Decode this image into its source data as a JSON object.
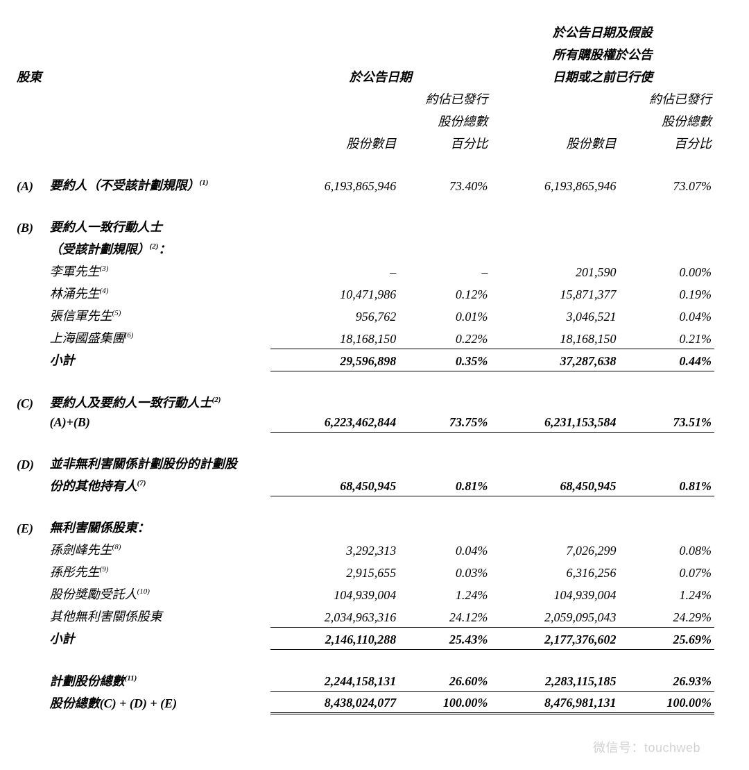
{
  "headers": {
    "shareholder": "股東",
    "group1": "於公告日期",
    "group2_line1": "於公告日期及假設",
    "group2_line2": "所有購股權於公告",
    "group2_line3": "日期或之前已行使",
    "shares": "股份數目",
    "pct_line1": "約佔已發行",
    "pct_line2": "股份總數",
    "pct_line3": "百分比"
  },
  "A": {
    "tag": "(A)",
    "label": "要約人（不受該計劃規限）",
    "sup": "(1)",
    "shares1": "6,193,865,946",
    "pct1": "73.40%",
    "shares2": "6,193,865,946",
    "pct2": "73.07%"
  },
  "B": {
    "tag": "(B)",
    "title_line1": "要約人一致行動人士",
    "title_line2": "（受該計劃規限）",
    "title_sup": "(2)",
    "rows": [
      {
        "label": "李軍先生",
        "sup": "(3)",
        "shares1": "–",
        "pct1": "–",
        "shares2": "201,590",
        "pct2": "0.00%"
      },
      {
        "label": "林涌先生",
        "sup": "(4)",
        "shares1": "10,471,986",
        "pct1": "0.12%",
        "shares2": "15,871,377",
        "pct2": "0.19%"
      },
      {
        "label": "張信軍先生",
        "sup": "(5)",
        "shares1": "956,762",
        "pct1": "0.01%",
        "shares2": "3,046,521",
        "pct2": "0.04%"
      },
      {
        "label": "上海國盛集團",
        "sup": "(6)",
        "shares1": "18,168,150",
        "pct1": "0.22%",
        "shares2": "18,168,150",
        "pct2": "0.21%"
      }
    ],
    "subtotal": {
      "label": "小計",
      "shares1": "29,596,898",
      "pct1": "0.35%",
      "shares2": "37,287,638",
      "pct2": "0.44%"
    }
  },
  "C": {
    "tag": "(C)",
    "label_line1": "要約人及要約人一致行動人士",
    "sup": "(2)",
    "label_line2": "(A)+(B)",
    "shares1": "6,223,462,844",
    "pct1": "73.75%",
    "shares2": "6,231,153,584",
    "pct2": "73.51%"
  },
  "D": {
    "tag": "(D)",
    "label_line1": "並非無利害關係計劃股份的計劃股",
    "label_line2": "份的其他持有人",
    "sup": "(7)",
    "shares1": "68,450,945",
    "pct1": "0.81%",
    "shares2": "68,450,945",
    "pct2": "0.81%"
  },
  "E": {
    "tag": "(E)",
    "title": "無利害關係股東：",
    "rows": [
      {
        "label": "孫劍峰先生",
        "sup": "(8)",
        "shares1": "3,292,313",
        "pct1": "0.04%",
        "shares2": "7,026,299",
        "pct2": "0.08%"
      },
      {
        "label": "孫彤先生",
        "sup": "(9)",
        "shares1": "2,915,655",
        "pct1": "0.03%",
        "shares2": "6,316,256",
        "pct2": "0.07%"
      },
      {
        "label": "股份獎勵受託人",
        "sup": "(10)",
        "shares1": "104,939,004",
        "pct1": "1.24%",
        "shares2": "104,939,004",
        "pct2": "1.24%"
      },
      {
        "label": "其他無利害關係股東",
        "sup": "",
        "shares1": "2,034,963,316",
        "pct1": "24.12%",
        "shares2": "2,059,095,043",
        "pct2": "24.29%"
      }
    ],
    "subtotal": {
      "label": "小計",
      "shares1": "2,146,110,288",
      "pct1": "25.43%",
      "shares2": "2,177,376,602",
      "pct2": "25.69%"
    }
  },
  "totals": {
    "plan": {
      "label": "計劃股份總數",
      "sup": "(11)",
      "shares1": "2,244,158,131",
      "pct1": "26.60%",
      "shares2": "2,283,115,185",
      "pct2": "26.93%"
    },
    "grand": {
      "label": "股份總數(C) + (D) + (E)",
      "shares1": "8,438,024,077",
      "pct1": "100.00%",
      "shares2": "8,476,981,131",
      "pct2": "100.00%"
    }
  },
  "watermark": "微信号：touchweb"
}
